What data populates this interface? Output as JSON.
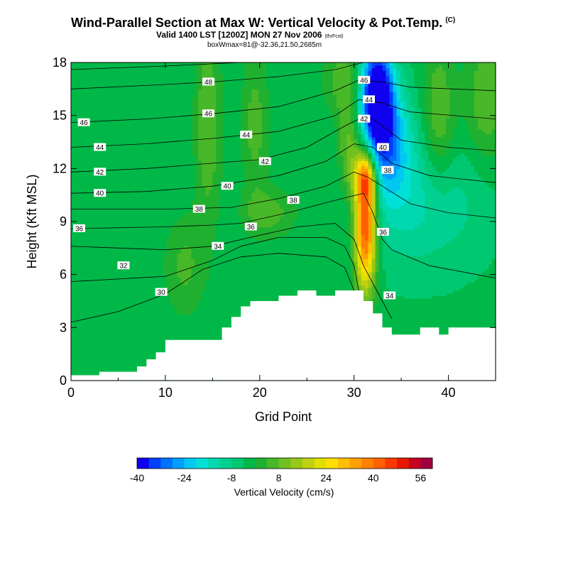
{
  "title": {
    "main": "Wind-Parallel Section at Max W: Vertical Velocity & Pot.Temp.",
    "mark": "(C)",
    "valid": "Valid 1400 LST [1200Z] MON 27 Nov 2006",
    "tag": "(thrFcst)",
    "box": "boxWmax=81@-32.36,21.50,2685m"
  },
  "chart_data": {
    "type": "heatmap",
    "xlabel": "Grid Point",
    "ylabel": "Height (Kft MSL)",
    "xlim": [
      0,
      45
    ],
    "ylim": [
      0,
      18
    ],
    "x_ticks": [
      0,
      10,
      20,
      30,
      40
    ],
    "y_ticks": [
      0,
      3,
      6,
      9,
      12,
      15,
      18
    ],
    "grid": false,
    "terrain_kft": [
      [
        0,
        0.3
      ],
      [
        3,
        0.3
      ],
      [
        3,
        0.5
      ],
      [
        7,
        0.5
      ],
      [
        7,
        0.8
      ],
      [
        8,
        0.8
      ],
      [
        8,
        1.2
      ],
      [
        9,
        1.2
      ],
      [
        9,
        1.6
      ],
      [
        10,
        1.6
      ],
      [
        10,
        2.3
      ],
      [
        16,
        2.3
      ],
      [
        16,
        3.0
      ],
      [
        17,
        3.0
      ],
      [
        17,
        3.6
      ],
      [
        18,
        3.6
      ],
      [
        18,
        4.2
      ],
      [
        19,
        4.2
      ],
      [
        19,
        4.5
      ],
      [
        22,
        4.5
      ],
      [
        22,
        4.8
      ],
      [
        24,
        4.8
      ],
      [
        24,
        5.1
      ],
      [
        26,
        5.1
      ],
      [
        26,
        4.8
      ],
      [
        28,
        4.8
      ],
      [
        28,
        5.1
      ],
      [
        31,
        5.1
      ],
      [
        31,
        4.5
      ],
      [
        32,
        4.5
      ],
      [
        32,
        3.8
      ],
      [
        33,
        3.8
      ],
      [
        33,
        3.0
      ],
      [
        34,
        3.0
      ],
      [
        34,
        2.6
      ],
      [
        37,
        2.6
      ],
      [
        37,
        3.0
      ],
      [
        39,
        3.0
      ],
      [
        39,
        2.6
      ],
      [
        40,
        2.6
      ],
      [
        40,
        3.0
      ],
      [
        45,
        3.0
      ]
    ],
    "w_features_cms": [
      {
        "x": 31.2,
        "y": 8.8,
        "sx": 0.8,
        "sy": 2.6,
        "w": 50
      },
      {
        "x": 31.0,
        "y": 11.6,
        "sx": 0.7,
        "sy": 1.0,
        "w": 22
      },
      {
        "x": 31.8,
        "y": 11.5,
        "sx": 0.6,
        "sy": 0.9,
        "w": 12
      },
      {
        "x": 32.4,
        "y": 16.2,
        "sx": 1.2,
        "sy": 2.0,
        "w": -44
      },
      {
        "x": 33.5,
        "y": 13.5,
        "sx": 1.8,
        "sy": 2.2,
        "w": -22
      },
      {
        "x": 37.0,
        "y": 10.0,
        "sx": 4.5,
        "sy": 2.5,
        "w": -10
      },
      {
        "x": 29.5,
        "y": 13.0,
        "sx": 0.8,
        "sy": 2.0,
        "w": 14
      },
      {
        "x": 29.0,
        "y": 17.0,
        "sx": 1.5,
        "sy": 1.5,
        "w": 10
      },
      {
        "x": 14.5,
        "y": 14.5,
        "sx": 1.0,
        "sy": 4.0,
        "w": 11
      },
      {
        "x": 19.5,
        "y": 14.5,
        "sx": 1.0,
        "sy": 3.0,
        "w": 9
      },
      {
        "x": 39.0,
        "y": 15.0,
        "sx": 1.2,
        "sy": 3.0,
        "w": 11
      },
      {
        "x": 44.0,
        "y": 16.0,
        "sx": 1.5,
        "sy": 2.5,
        "w": 11
      },
      {
        "x": 21.0,
        "y": 9.5,
        "sx": 2.0,
        "sy": 1.0,
        "w": 9
      },
      {
        "x": 12.0,
        "y": 6.5,
        "sx": 1.5,
        "sy": 2.0,
        "w": 8
      }
    ],
    "w_background_cms": -3,
    "theta_contours": [
      {
        "label": "30",
        "pts": [
          [
            0,
            3.3
          ],
          [
            5,
            3.9
          ],
          [
            10,
            4.9
          ],
          [
            14,
            6.3
          ],
          [
            18,
            7.0
          ],
          [
            22,
            7.2
          ],
          [
            27,
            7.0
          ],
          [
            29,
            6.4
          ],
          [
            30,
            5.1
          ]
        ],
        "lx": 9.0,
        "ly": 5.0
      },
      {
        "label": "32",
        "pts": [
          [
            0,
            5.6
          ],
          [
            10,
            5.9
          ],
          [
            15,
            6.8
          ],
          [
            18,
            7.6
          ],
          [
            22,
            8.1
          ],
          [
            27,
            8.1
          ],
          [
            29,
            7.6
          ],
          [
            30,
            6.5
          ],
          [
            30.5,
            5.1
          ]
        ],
        "lx": 5.0,
        "ly": 6.5
      },
      {
        "label": "34",
        "pts": [
          [
            0,
            7.6
          ],
          [
            10,
            7.4
          ],
          [
            15,
            7.6
          ],
          [
            19,
            8.1
          ],
          [
            24,
            8.7
          ],
          [
            28,
            8.9
          ],
          [
            30,
            8.0
          ],
          [
            31,
            6.5
          ],
          [
            32,
            5.5
          ],
          [
            33,
            4.5
          ],
          [
            34,
            3.5
          ]
        ],
        "lx": 15.0,
        "ly": 7.6,
        "l2x": 33.2,
        "l2y": 4.8
      },
      {
        "label": "36",
        "pts": [
          [
            0,
            8.6
          ],
          [
            10,
            8.7
          ],
          [
            15,
            8.8
          ],
          [
            18,
            8.9
          ],
          [
            23,
            9.5
          ],
          [
            28,
            10.2
          ],
          [
            31,
            10.6
          ],
          [
            32,
            9.5
          ],
          [
            33,
            8.0
          ],
          [
            34,
            7.4
          ],
          [
            38,
            6.5
          ],
          [
            43,
            6.0
          ],
          [
            45,
            5.8
          ]
        ],
        "lx": 0.3,
        "ly": 8.6,
        "l2x": 18.5,
        "l2y": 8.7,
        "l3x": 32.5,
        "l3y": 8.4
      },
      {
        "label": "38",
        "pts": [
          [
            0,
            9.7
          ],
          [
            10,
            9.7
          ],
          [
            17,
            9.8
          ],
          [
            22,
            10.3
          ],
          [
            27,
            11.0
          ],
          [
            30,
            11.8
          ],
          [
            31.5,
            11.5
          ],
          [
            33,
            11.0
          ],
          [
            36,
            10.0
          ],
          [
            40,
            9.5
          ],
          [
            45,
            9.2
          ]
        ],
        "lx": 13.0,
        "ly": 9.7,
        "l2x": 23.0,
        "l2y": 10.2,
        "l3x": 33.0,
        "l3y": 11.9
      },
      {
        "label": "40",
        "pts": [
          [
            0,
            10.6
          ],
          [
            8,
            10.7
          ],
          [
            15,
            11.0
          ],
          [
            22,
            11.6
          ],
          [
            27,
            12.4
          ],
          [
            30,
            13.4
          ],
          [
            32,
            13.2
          ],
          [
            34,
            12.3
          ],
          [
            38,
            11.6
          ],
          [
            45,
            11.2
          ]
        ],
        "lx": 2.5,
        "ly": 10.6,
        "l2x": 16.0,
        "l2y": 11.0,
        "l3x": 32.5,
        "l3y": 13.2
      },
      {
        "label": "42",
        "pts": [
          [
            0,
            11.8
          ],
          [
            8,
            12.0
          ],
          [
            15,
            12.3
          ],
          [
            20,
            12.5
          ],
          [
            25,
            13.2
          ],
          [
            29,
            14.4
          ],
          [
            30.5,
            14.8
          ],
          [
            32,
            14.8
          ],
          [
            35,
            13.6
          ],
          [
            40,
            13.2
          ],
          [
            45,
            13.0
          ]
        ],
        "lx": 2.5,
        "ly": 11.8,
        "l2x": 20.0,
        "l2y": 12.4,
        "l3x": 30.5,
        "l3y": 14.8
      },
      {
        "label": "44",
        "pts": [
          [
            0,
            13.2
          ],
          [
            8,
            13.4
          ],
          [
            15,
            13.7
          ],
          [
            22,
            14.1
          ],
          [
            28,
            15.0
          ],
          [
            30.5,
            15.9
          ],
          [
            33,
            15.7
          ],
          [
            36,
            15.2
          ],
          [
            45,
            14.8
          ]
        ],
        "lx": 2.5,
        "ly": 13.2,
        "l2x": 18.0,
        "l2y": 13.9,
        "l3x": 31.0,
        "l3y": 15.9
      },
      {
        "label": "46",
        "pts": [
          [
            0,
            14.6
          ],
          [
            8,
            14.8
          ],
          [
            15,
            15.1
          ],
          [
            22,
            15.5
          ],
          [
            28,
            16.4
          ],
          [
            30.5,
            17.0
          ],
          [
            33,
            16.9
          ],
          [
            36,
            16.6
          ],
          [
            45,
            16.4
          ]
        ],
        "lx": 0.8,
        "ly": 14.6,
        "l2x": 14.0,
        "l2y": 15.1,
        "l3x": 30.5,
        "l3y": 17.0
      },
      {
        "label": "48",
        "pts": [
          [
            0,
            16.5
          ],
          [
            8,
            16.7
          ],
          [
            15,
            16.9
          ],
          [
            22,
            17.2
          ],
          [
            28,
            17.6
          ],
          [
            31,
            18.0
          ]
        ],
        "lx": 14.0,
        "ly": 16.9
      },
      {
        "label": "",
        "pts": [
          [
            0,
            17.6
          ],
          [
            10,
            17.8
          ],
          [
            18,
            18.0
          ]
        ]
      }
    ],
    "colorbar": {
      "label": "Vertical Velocity (cm/s)",
      "min": -40,
      "step": 4,
      "tick_labels": [
        "-40",
        "-24",
        "-8",
        "8",
        "24",
        "40",
        "56"
      ],
      "tick_values": [
        -40,
        -24,
        -8,
        8,
        24,
        40,
        56
      ],
      "colors": [
        "#1000f0",
        "#0040ff",
        "#0070ff",
        "#00a0ff",
        "#00c8f0",
        "#00e0d8",
        "#00d8b0",
        "#00d090",
        "#00c870",
        "#00b848",
        "#20b030",
        "#48b828",
        "#70c020",
        "#98c818",
        "#c0d010",
        "#e0e000",
        "#ffe000",
        "#ffc000",
        "#ffa000",
        "#ff8000",
        "#ff6000",
        "#ff3800",
        "#e81800",
        "#c80020",
        "#a00040"
      ]
    }
  }
}
